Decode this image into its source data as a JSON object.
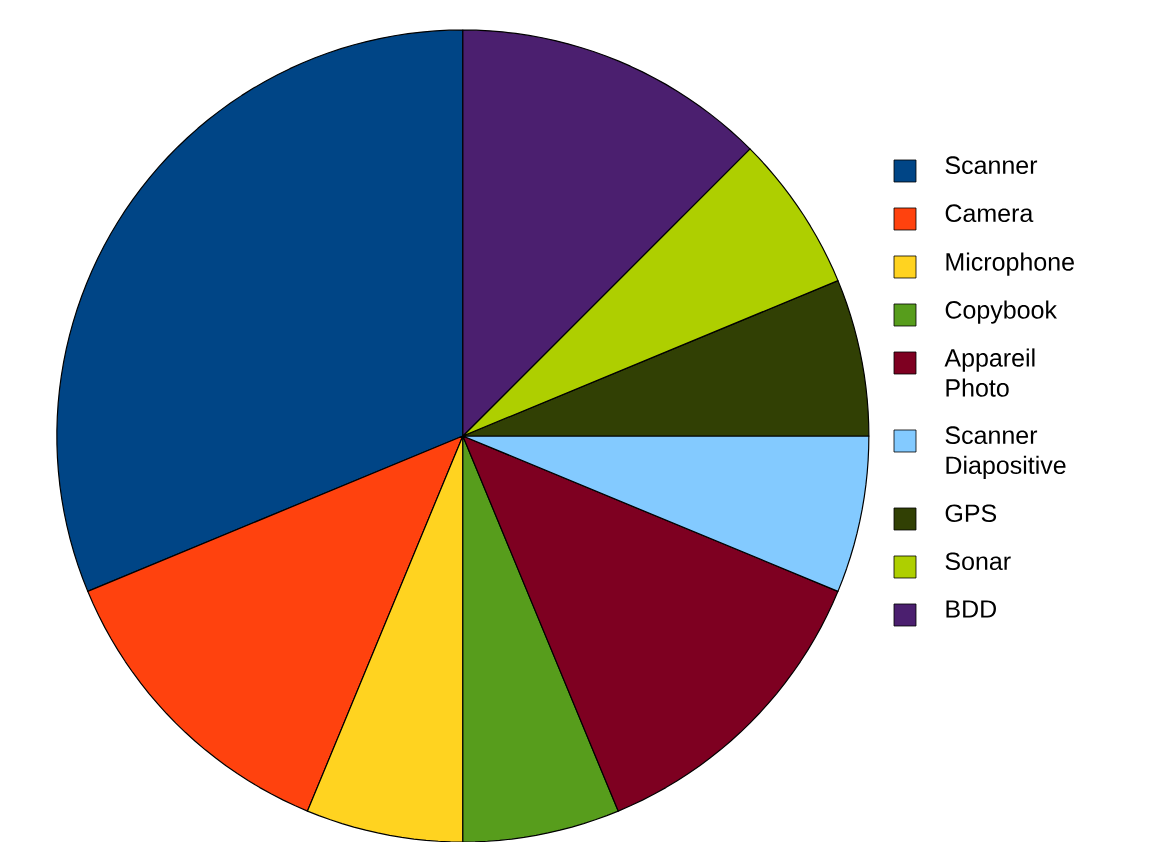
{
  "chart_data": {
    "type": "pie",
    "categories": [
      "Scanner",
      "Camera",
      "Microphone",
      "Copybook",
      "Appareil Photo",
      "Scanner Diapositive",
      "GPS",
      "Sonar",
      "BDD"
    ],
    "values": [
      31.25,
      12.5,
      6.25,
      6.25,
      12.5,
      6.25,
      6.25,
      6.25,
      12.5
    ],
    "colors": [
      "#004586",
      "#ff420e",
      "#ffd320",
      "#579d1c",
      "#7e0021",
      "#83caff",
      "#314004",
      "#aecf00",
      "#4b1f6f"
    ],
    "legend": "right"
  }
}
